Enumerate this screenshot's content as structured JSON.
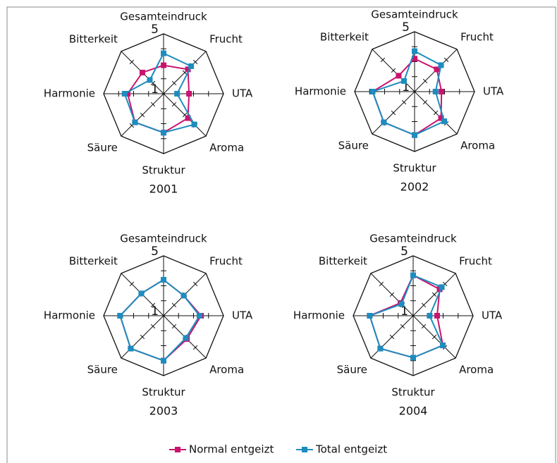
{
  "chart_data": [
    {
      "type": "radar",
      "title": "2001",
      "categories": [
        "Gesamteindruck",
        "Frucht",
        "UTA",
        "Aroma",
        "Struktur",
        "Säure",
        "Harmonie",
        "Bitterkeit"
      ],
      "rlim": [
        1,
        5
      ],
      "rticks": [
        1,
        5
      ],
      "rminorticks": [
        2,
        3,
        4
      ],
      "series": [
        {
          "name": "Normal entgeizt",
          "color": "#c8146e",
          "values": [
            2.9,
            3.3,
            2.7,
            3.3,
            3.6,
            3.7,
            3.4,
            3.0
          ]
        },
        {
          "name": "Total entgeizt",
          "color": "#1e8cbe",
          "values": [
            3.7,
            3.6,
            1.9,
            3.9,
            3.6,
            3.7,
            3.6,
            2.3
          ]
        }
      ]
    },
    {
      "type": "radar",
      "title": "2002",
      "categories": [
        "Gesamteindruck",
        "Frucht",
        "UTA",
        "Aroma",
        "Struktur",
        "Säure",
        "Harmonie",
        "Bitterkeit"
      ],
      "rlim": [
        1,
        5
      ],
      "rticks": [
        1,
        5
      ],
      "rminorticks": [
        2,
        3,
        4
      ],
      "series": [
        {
          "color": "#c8146e",
          "values": [
            3.2,
            3.1,
            2.8,
            3.5,
            3.9,
            3.9,
            3.8,
            2.5
          ]
        },
        {
          "color": "#1e8cbe",
          "values": [
            3.7,
            3.5,
            2.4,
            3.8,
            3.9,
            3.9,
            3.8,
            2.0
          ]
        }
      ]
    },
    {
      "type": "radar",
      "title": "2003",
      "categories": [
        "Gesamteindruck",
        "Frucht",
        "UTA",
        "Aroma",
        "Struktur",
        "Säure",
        "Harmonie",
        "Bitterkeit"
      ],
      "rlim": [
        1,
        5
      ],
      "rticks": [
        1,
        5
      ],
      "rminorticks": [
        2,
        3,
        4
      ],
      "series": [
        {
          "color": "#c8146e",
          "values": [
            3.4,
            2.9,
            3.5,
            3.2,
            4.0,
            4.1,
            3.9,
            3.1
          ]
        },
        {
          "color": "#1e8cbe",
          "values": [
            3.4,
            2.9,
            3.4,
            3.1,
            4.0,
            4.1,
            3.9,
            3.1
          ]
        }
      ]
    },
    {
      "type": "radar",
      "title": "2004",
      "categories": [
        "Gesamteindruck",
        "Frucht",
        "UTA",
        "Aroma",
        "Struktur",
        "Säure",
        "Harmonie",
        "Bitterkeit"
      ],
      "rlim": [
        1,
        5
      ],
      "rticks": [
        1,
        5
      ],
      "rminorticks": [
        2,
        3,
        4
      ],
      "series": [
        {
          "color": "#c8146e",
          "values": [
            3.7,
            3.5,
            2.6,
            3.8,
            3.8,
            4.1,
            3.9,
            2.2
          ]
        },
        {
          "color": "#1e8cbe",
          "values": [
            3.7,
            3.7,
            2.1,
            3.8,
            3.8,
            4.1,
            3.9,
            2.1
          ]
        }
      ]
    }
  ]
}
